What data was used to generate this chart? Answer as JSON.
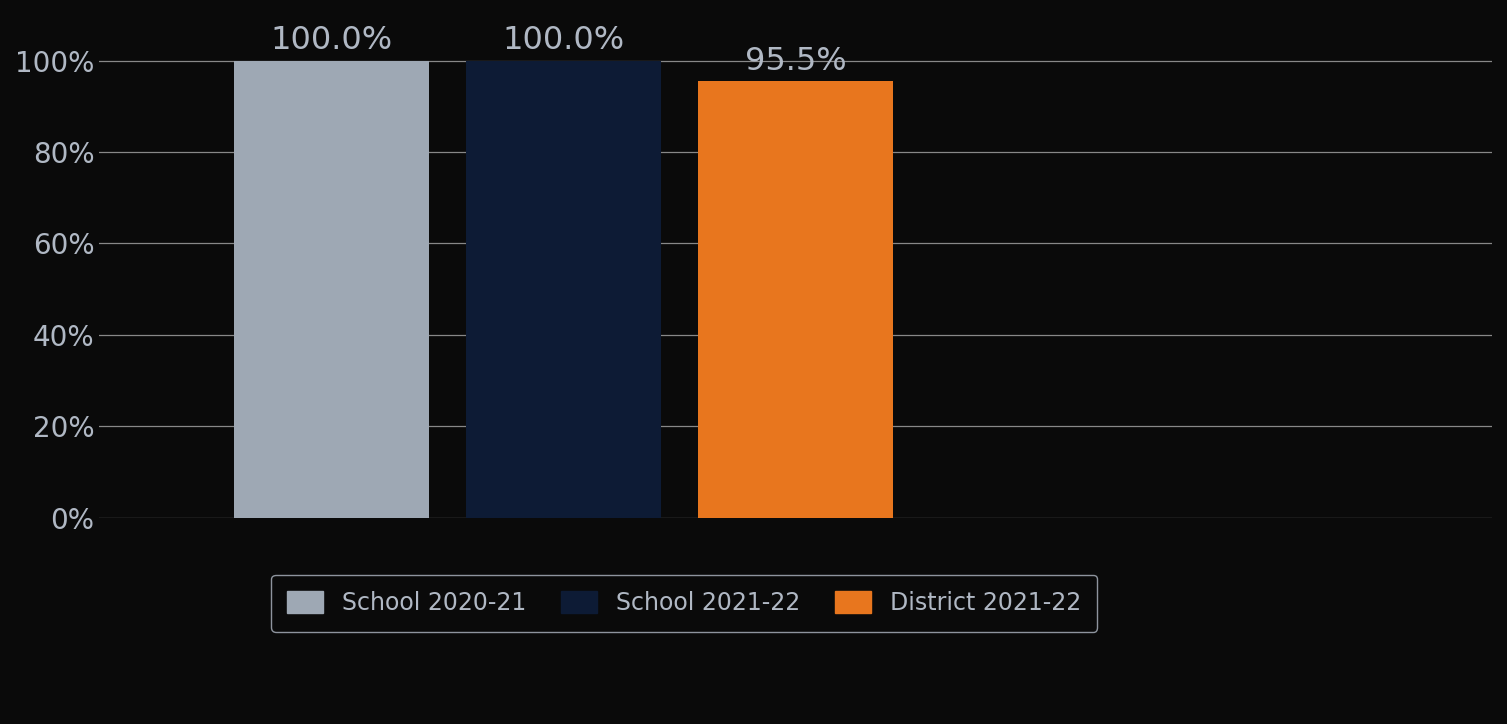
{
  "categories": [
    "School 2020-21",
    "School 2021-22",
    "District 2021-22"
  ],
  "values": [
    100.0,
    100.0,
    95.5
  ],
  "bar_colors": [
    "#9EA8B4",
    "#0D1B35",
    "#E8761E"
  ],
  "bar_labels": [
    "100.0%",
    "100.0%",
    "95.5%"
  ],
  "ylim": [
    0,
    110
  ],
  "yticks": [
    0,
    20,
    40,
    60,
    80,
    100
  ],
  "ytick_labels": [
    "0%",
    "20%",
    "40%",
    "60%",
    "80%",
    "100%"
  ],
  "background_color": "#0A0A0A",
  "text_color": "#B0B8C4",
  "grid_color": "#888888",
  "tick_fontsize": 20,
  "legend_fontsize": 17,
  "bar_label_fontsize": 23,
  "bar_positions": [
    0.5,
    1.0,
    1.5
  ],
  "bar_width": 0.42,
  "xlim": [
    0.0,
    3.0
  ]
}
